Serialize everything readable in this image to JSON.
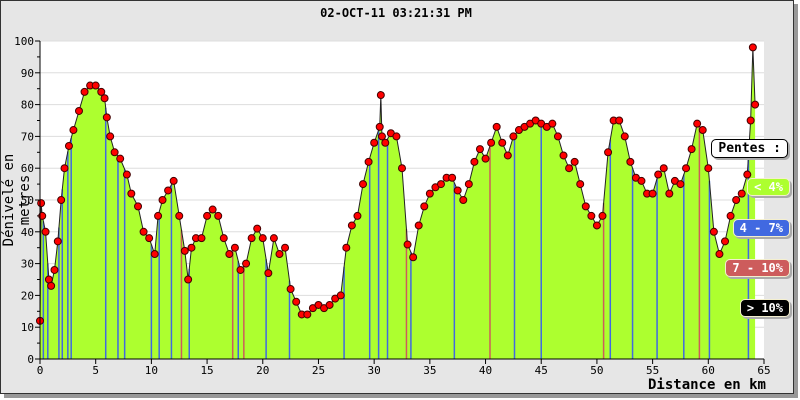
{
  "chart_data": {
    "type": "area",
    "title": "02-OCT-11 03:21:31 PM",
    "xlabel": "Distance en km",
    "ylabel": "Dénivelé en metres",
    "xlim": [
      0,
      65
    ],
    "ylim": [
      0,
      100
    ],
    "xticks": [
      "0",
      "5",
      "10",
      "15",
      "20",
      "25",
      "30",
      "35",
      "40",
      "45",
      "50",
      "55",
      "60",
      "65"
    ],
    "yticks": [
      "0",
      "10",
      "20",
      "30",
      "40",
      "50",
      "60",
      "70",
      "80",
      "90",
      "100"
    ],
    "grid": "horizontal",
    "fill_color": "#adff2f",
    "marker_color": "#ff0000",
    "x": [
      0,
      0.1,
      0.2,
      0.5,
      0.8,
      1.0,
      1.3,
      1.6,
      1.9,
      2.2,
      2.6,
      3.0,
      3.5,
      4.0,
      4.5,
      5.0,
      5.5,
      5.8,
      6.0,
      6.3,
      6.7,
      7.2,
      7.8,
      8.2,
      8.8,
      9.3,
      9.8,
      10.3,
      10.6,
      11.0,
      11.5,
      12.0,
      12.5,
      13.0,
      13.3,
      13.6,
      14.0,
      14.5,
      15.0,
      15.5,
      16.0,
      16.5,
      17.0,
      17.5,
      18.0,
      18.5,
      19.0,
      19.5,
      20.0,
      20.5,
      21.0,
      21.5,
      22.0,
      22.5,
      23.0,
      23.5,
      24.0,
      24.5,
      25.0,
      25.5,
      26.0,
      26.5,
      27.0,
      27.5,
      28.0,
      28.5,
      29.0,
      29.5,
      30.0,
      30.5,
      30.6,
      30.7,
      31.0,
      31.5,
      32.0,
      32.5,
      33.0,
      33.5,
      34.0,
      34.5,
      35.0,
      35.5,
      36.0,
      36.5,
      37.0,
      37.5,
      38.0,
      38.5,
      39.0,
      39.5,
      40.0,
      40.5,
      41.0,
      41.5,
      42.0,
      42.5,
      43.0,
      43.5,
      44.0,
      44.5,
      45.0,
      45.5,
      46.0,
      46.5,
      47.0,
      47.5,
      48.0,
      48.5,
      49.0,
      49.5,
      50.0,
      50.5,
      51.0,
      51.5,
      52.0,
      52.5,
      53.0,
      53.5,
      54.0,
      54.5,
      55.0,
      55.5,
      56.0,
      56.5,
      57.0,
      57.5,
      58.0,
      58.5,
      59.0,
      59.5,
      60.0,
      60.5,
      61.0,
      61.5,
      62.0,
      62.5,
      63.0,
      63.5,
      63.8,
      64.0,
      64.2
    ],
    "values": [
      12,
      49,
      45,
      40,
      25,
      23,
      28,
      37,
      50,
      60,
      67,
      72,
      78,
      84,
      86,
      86,
      84,
      82,
      76,
      70,
      65,
      63,
      58,
      52,
      48,
      40,
      38,
      33,
      45,
      50,
      53,
      56,
      45,
      34,
      25,
      35,
      38,
      38,
      45,
      47,
      45,
      38,
      33,
      35,
      28,
      30,
      38,
      41,
      38,
      27,
      38,
      33,
      35,
      22,
      18,
      14,
      14,
      16,
      17,
      16,
      17,
      19,
      20,
      35,
      42,
      45,
      55,
      62,
      68,
      73,
      83,
      70,
      68,
      71,
      70,
      60,
      36,
      32,
      42,
      48,
      52,
      54,
      55,
      57,
      57,
      53,
      50,
      55,
      62,
      66,
      63,
      68,
      73,
      68,
      64,
      70,
      72,
      73,
      74,
      75,
      74,
      73,
      74,
      70,
      64,
      60,
      62,
      55,
      48,
      45,
      42,
      45,
      65,
      75,
      75,
      70,
      62,
      57,
      56,
      52,
      52,
      58,
      60,
      52,
      56,
      55,
      60,
      66,
      74,
      72,
      60,
      40,
      33,
      37,
      45,
      50,
      52,
      58,
      75,
      98,
      80
    ],
    "slope_lines": [
      {
        "x": 0.3,
        "c": "4-7"
      },
      {
        "x": 0.7,
        "c": "4-7"
      },
      {
        "x": 1.7,
        "c": "4-7"
      },
      {
        "x": 2.0,
        "c": "4-7"
      },
      {
        "x": 2.5,
        "c": "4-7"
      },
      {
        "x": 2.8,
        "c": "4-7"
      },
      {
        "x": 5.9,
        "c": "4-7"
      },
      {
        "x": 7.0,
        "c": "4-7"
      },
      {
        "x": 7.6,
        "c": "4-7"
      },
      {
        "x": 10.0,
        "c": "4-7"
      },
      {
        "x": 10.7,
        "c": "4-7"
      },
      {
        "x": 11.8,
        "c": "4-7"
      },
      {
        "x": 12.7,
        "c": "7-10"
      },
      {
        "x": 13.4,
        "c": "4-7"
      },
      {
        "x": 17.3,
        "c": "7-10"
      },
      {
        "x": 17.8,
        "c": "4-7"
      },
      {
        "x": 18.3,
        "c": "7-10"
      },
      {
        "x": 20.3,
        "c": "4-7"
      },
      {
        "x": 22.4,
        "c": "4-7"
      },
      {
        "x": 27.3,
        "c": "4-7"
      },
      {
        "x": 29.6,
        "c": "4-7"
      },
      {
        "x": 30.4,
        "c": "4-7"
      },
      {
        "x": 31.2,
        "c": "4-7"
      },
      {
        "x": 32.9,
        "c": "7-10"
      },
      {
        "x": 33.3,
        "c": "4-7"
      },
      {
        "x": 37.2,
        "c": "4-7"
      },
      {
        "x": 40.4,
        "c": "7-10"
      },
      {
        "x": 42.6,
        "c": "4-7"
      },
      {
        "x": 45.0,
        "c": "4-7"
      },
      {
        "x": 50.6,
        "c": "7-10"
      },
      {
        "x": 51.2,
        "c": "4-7"
      },
      {
        "x": 53.2,
        "c": "4-7"
      },
      {
        "x": 55.4,
        "c": "4-7"
      },
      {
        "x": 57.8,
        "c": "4-7"
      },
      {
        "x": 59.2,
        "c": "7-10"
      },
      {
        "x": 60.1,
        "c": "4-7"
      },
      {
        "x": 63.6,
        "c": "4-7"
      }
    ],
    "legend": {
      "title": "Pentes :",
      "placement": "right",
      "entries": [
        {
          "label": "< 4%",
          "color": "#adff2f",
          "text_color": "#ffffff"
        },
        {
          "label": "4 - 7%",
          "color": "#4169e1",
          "text_color": "#ffffff"
        },
        {
          "label": "7 - 10%",
          "color": "#cd5c5c",
          "text_color": "#ffffff"
        },
        {
          "label": "> 10%",
          "color": "#000000",
          "text_color": "#ffffff"
        }
      ]
    }
  }
}
